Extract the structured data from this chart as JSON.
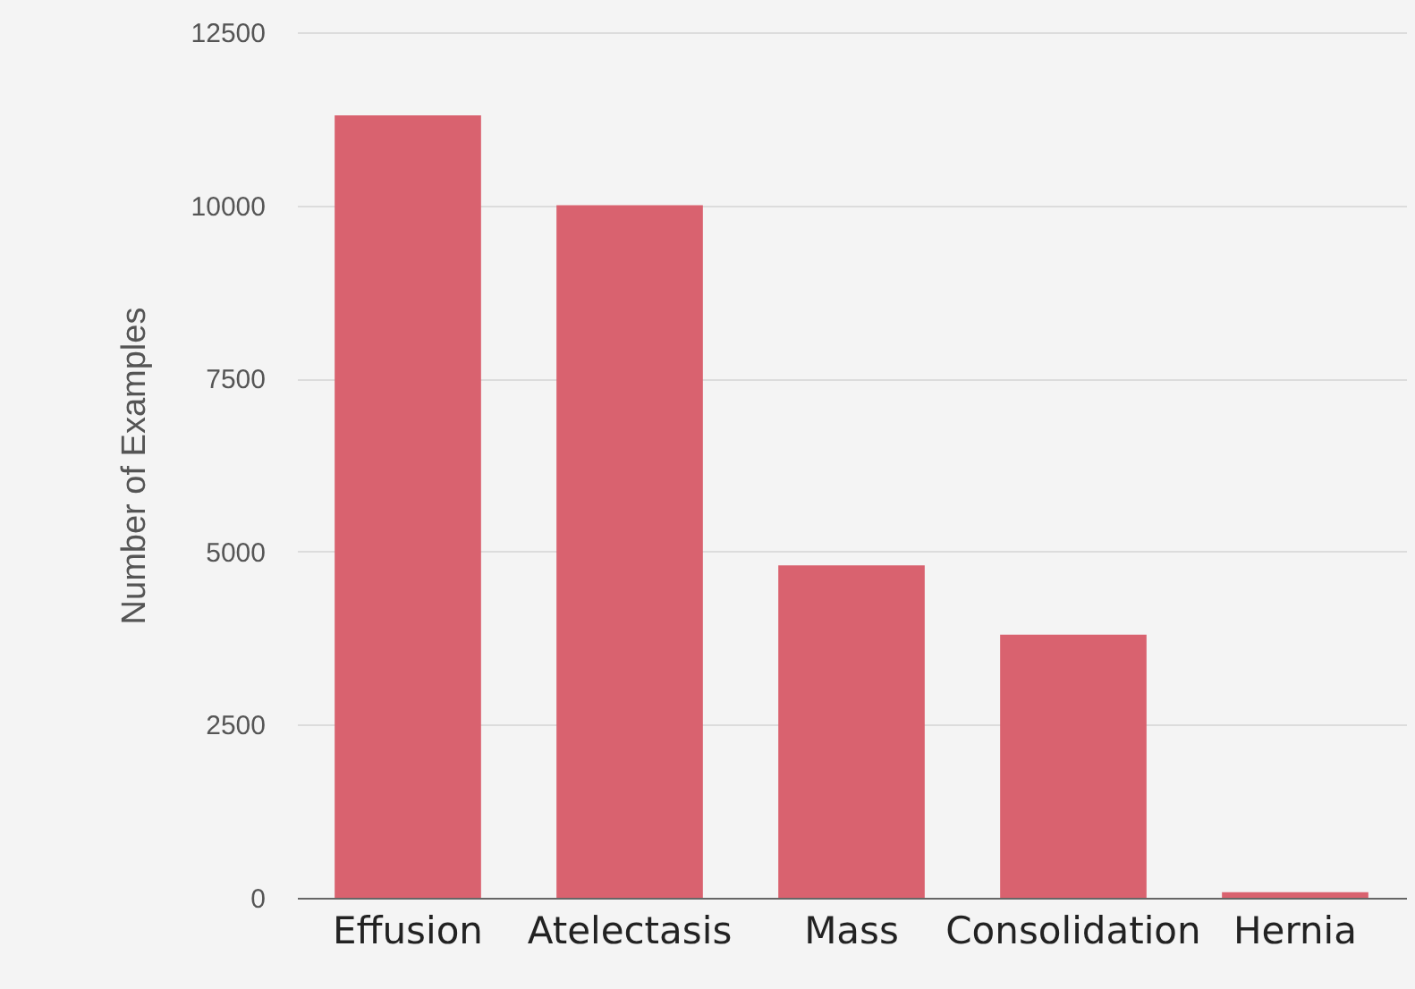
{
  "chart_data": {
    "type": "bar",
    "ylabel": "Number of Examples",
    "categories": [
      "Effusion",
      "Atelectasis",
      "Mass",
      "Consolidation",
      "Hernia"
    ],
    "values": [
      11300,
      10000,
      4800,
      3800,
      80
    ],
    "color": "#d9626f",
    "ylim": [
      0,
      12500
    ],
    "yticks": [
      0,
      2500,
      5000,
      7500,
      10000,
      12500
    ],
    "grid": "y"
  }
}
